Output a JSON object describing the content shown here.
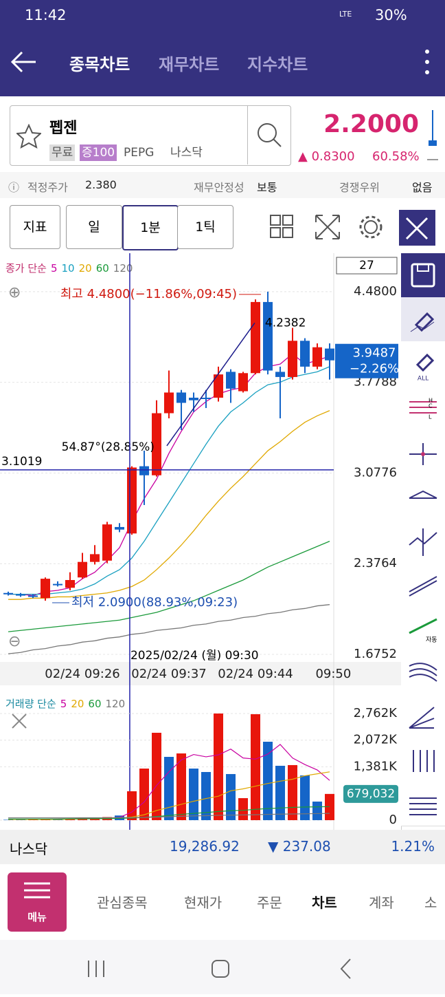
{
  "status_bar": {
    "time": "11:42",
    "network": "LTE",
    "battery": "30%"
  },
  "header": {
    "tabs": [
      "종목차트",
      "재무차트",
      "지수차트"
    ]
  },
  "stock": {
    "name": "펩젠",
    "tags": [
      "무료",
      "증100"
    ],
    "ticker": "PEPG",
    "market": "나스닥",
    "price": "2.2000",
    "change": "0.8300",
    "change_pct": "60.58%"
  },
  "info_bar": {
    "items": [
      {
        "label": "적정주가",
        "value": "2.380"
      },
      {
        "label": "재무안정성",
        "value": "보통"
      },
      {
        "label": "경쟁우위",
        "value": "없음"
      }
    ]
  },
  "toolbar": {
    "buttons": [
      "지표",
      "일",
      "1분",
      "1틱"
    ]
  },
  "side_tools": {
    "labels": [
      "ALL",
      "H",
      "C",
      "L",
      "자동"
    ]
  },
  "chart_data": [
    {
      "type": "candlestick",
      "legend_title": "종가 단순",
      "visible_count": 27,
      "open": [
        2.15,
        2.14,
        2.13,
        2.11,
        2.22,
        2.19,
        2.27,
        2.39,
        2.4,
        2.66,
        2.61,
        3.13,
        3.06,
        3.54,
        3.7,
        3.66,
        3.66,
        3.66,
        3.86,
        3.71,
        3.85,
        4.4,
        3.86,
        3.82,
        4.1,
        3.9,
        4.04
      ],
      "high": [
        2.16,
        2.15,
        2.14,
        2.27,
        2.24,
        2.31,
        2.46,
        2.52,
        2.7,
        2.69,
        3.13,
        3.25,
        3.64,
        3.87,
        3.72,
        3.7,
        3.72,
        3.9,
        3.88,
        3.86,
        4.42,
        4.48,
        3.9,
        4.2,
        4.12,
        4.08,
        4.08
      ],
      "low": [
        2.13,
        2.12,
        2.11,
        2.09,
        2.2,
        2.17,
        2.26,
        2.37,
        2.38,
        2.62,
        2.6,
        2.83,
        3.05,
        3.5,
        3.41,
        3.55,
        3.58,
        3.63,
        3.62,
        3.7,
        3.84,
        3.84,
        3.5,
        3.8,
        3.85,
        3.88,
        3.8
      ],
      "close": [
        2.14,
        2.13,
        2.12,
        2.26,
        2.21,
        2.25,
        2.39,
        2.45,
        2.68,
        2.64,
        3.12,
        3.06,
        3.54,
        3.7,
        3.62,
        3.64,
        3.65,
        3.84,
        3.73,
        3.85,
        4.4,
        3.87,
        3.82,
        4.1,
        3.9,
        4.05,
        3.9487
      ],
      "up_color": "#e8160c",
      "down_color": "#1565c8",
      "series": [
        {
          "name": "5",
          "color": "#c800a0",
          "values": [
            2.14,
            2.14,
            2.13,
            2.16,
            2.17,
            2.19,
            2.26,
            2.31,
            2.4,
            2.5,
            2.7,
            2.88,
            3.03,
            3.23,
            3.4,
            3.55,
            3.63,
            3.69,
            3.72,
            3.74,
            3.85,
            3.9,
            3.92,
            4.0,
            3.92,
            3.95,
            3.98
          ]
        },
        {
          "name": "10",
          "color": "#19a0c0",
          "values": [
            2.14,
            2.14,
            2.14,
            2.14,
            2.15,
            2.16,
            2.18,
            2.22,
            2.28,
            2.33,
            2.42,
            2.55,
            2.7,
            2.85,
            3.0,
            3.15,
            3.3,
            3.44,
            3.55,
            3.62,
            3.7,
            3.76,
            3.78,
            3.82,
            3.84,
            3.86,
            3.9
          ]
        },
        {
          "name": "20",
          "color": "#e0a800",
          "values": [
            2.1,
            2.1,
            2.11,
            2.11,
            2.12,
            2.12,
            2.13,
            2.14,
            2.15,
            2.17,
            2.2,
            2.25,
            2.33,
            2.42,
            2.52,
            2.63,
            2.75,
            2.86,
            2.96,
            3.05,
            3.15,
            3.25,
            3.32,
            3.4,
            3.47,
            3.52,
            3.56
          ]
        },
        {
          "name": "60",
          "color": "#1a9a3a",
          "values": [
            1.85,
            1.86,
            1.87,
            1.88,
            1.89,
            1.9,
            1.91,
            1.92,
            1.93,
            1.94,
            1.96,
            1.98,
            2.0,
            2.03,
            2.06,
            2.09,
            2.13,
            2.17,
            2.21,
            2.25,
            2.3,
            2.35,
            2.39,
            2.43,
            2.47,
            2.51,
            2.55
          ]
        },
        {
          "name": "120",
          "color": "#777777",
          "values": [
            1.68,
            1.69,
            1.71,
            1.72,
            1.74,
            1.75,
            1.77,
            1.78,
            1.8,
            1.81,
            1.83,
            1.84,
            1.86,
            1.87,
            1.88,
            1.9,
            1.91,
            1.93,
            1.94,
            1.96,
            1.97,
            1.99,
            2.0,
            2.02,
            2.03,
            2.05,
            2.06
          ]
        }
      ],
      "xlim": [
        -0.667,
        26.333
      ],
      "xticks": [
        {
          "value": 6,
          "label": "02/24 09:26"
        },
        {
          "value": 13,
          "label": "02/24 09:37"
        },
        {
          "value": 20,
          "label": "02/24 09:44"
        },
        {
          "value": 26.3,
          "label": "09:50"
        }
      ],
      "ylim": [
        1.654,
        4.756
      ],
      "yticks": [
        1.6752,
        2.3764,
        3.0776,
        3.7788,
        {
          "value": 4.48,
          "label": "4.4800"
        }
      ],
      "grid": true,
      "last_price": 3.9487,
      "last_change": "−2.26%",
      "crosshair": {
        "x": 9.83,
        "y": 3.1019,
        "x_label": "2025/02/24 (월) 09:30"
      },
      "annotations": {
        "high": {
          "x": 21,
          "value": 4.48,
          "label": "최고 4.4800(−11.86%,09:45)"
        },
        "low": {
          "x": 3,
          "value": 2.09,
          "label": "최저 2.0900(88.93%,09:23)"
        }
      },
      "trendline": {
        "x": [
          12.83,
          19.94
        ],
        "y": [
          3.288,
          4.2382
        ],
        "end_label": "4.2382",
        "angle_label": "54.87°(28.85%)"
      }
    },
    {
      "type": "bar",
      "legend_title": "거래량 단순",
      "values": [
        10,
        10,
        20,
        30,
        20,
        40,
        60,
        40,
        80,
        120,
        748,
        1336,
        2263,
        1639,
        1728,
        1336,
        1247,
        2762,
        1194,
        570,
        2744,
        2031,
        1408,
        1426,
        1158,
        481,
        679.032
      ],
      "colors": [
        "#1565c8",
        "#1565c8",
        "#e8160c",
        "#e8160c",
        "#1565c8",
        "#e8160c",
        "#e8160c",
        "#e8160c",
        "#e8160c",
        "#1565c8",
        "#e8160c",
        "#e8160c",
        "#e8160c",
        "#1565c8",
        "#e8160c",
        "#1565c8",
        "#1565c8",
        "#e8160c",
        "#1565c8",
        "#e8160c",
        "#e8160c",
        "#1565c8",
        "#1565c8",
        "#e8160c",
        "#1565c8",
        "#1565c8",
        "#e8160c"
      ],
      "series": [
        {
          "name": "5",
          "color": "#c800a0",
          "values": [
            20,
            20,
            25,
            25,
            30,
            35,
            40,
            45,
            55,
            70,
            210,
            470,
            900,
            1250,
            1560,
            1700,
            1640,
            1690,
            1840,
            1610,
            1580,
            1710,
            1960,
            1610,
            1440,
            1300,
            1030
          ]
        },
        {
          "name": "20",
          "color": "#e0a800",
          "values": [
            20,
            20,
            20,
            20,
            20,
            25,
            30,
            35,
            40,
            50,
            80,
            140,
            250,
            330,
            410,
            490,
            560,
            620,
            760,
            810,
            880,
            950,
            1010,
            1060,
            1150,
            1200,
            1250
          ]
        },
        {
          "name": "60",
          "color": "#1a9a3a",
          "values": [
            30,
            30,
            30,
            30,
            30,
            35,
            35,
            40,
            40,
            45,
            55,
            70,
            95,
            120,
            150,
            175,
            195,
            225,
            245,
            255,
            280,
            300,
            315,
            330,
            340,
            345,
            350
          ]
        },
        {
          "name": "120",
          "color": "#777777",
          "values": [
            60,
            60,
            60,
            60,
            60,
            60,
            62,
            62,
            62,
            64,
            66,
            70,
            80,
            90,
            100,
            110,
            115,
            125,
            130,
            135,
            140,
            150,
            155,
            160,
            165,
            170,
            175
          ]
        }
      ],
      "xlim": [
        -0.667,
        26.333
      ],
      "ylim": [
        -143,
        3332
      ],
      "yticks": [
        0,
        {
          "value": 1381,
          "label": "1,381K"
        },
        {
          "value": 2072,
          "label": "2,072K"
        },
        {
          "value": 2762,
          "label": "2,762K"
        }
      ],
      "last_value_label": "679,032"
    }
  ],
  "index_bar": {
    "name": "나스닥",
    "value": "19,286.92",
    "change": "237.08",
    "change_pct": "1.21%"
  },
  "bottom_nav": {
    "menu": "메뉴",
    "items": [
      "관심종목",
      "현재가",
      "주문",
      "차트",
      "계좌",
      "소"
    ]
  }
}
